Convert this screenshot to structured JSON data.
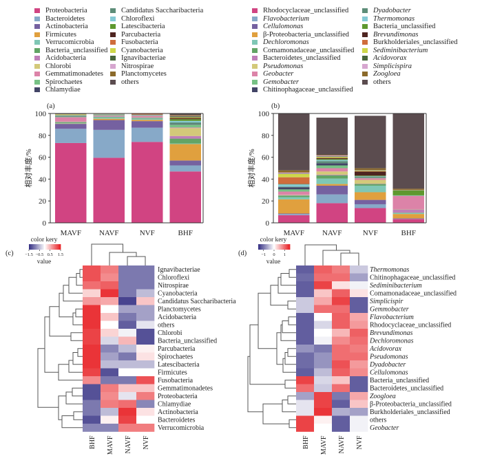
{
  "chart_data": [
    {
      "panel": "(a)",
      "type": "bar",
      "stacked": true,
      "ylabel": "相对丰度/%",
      "ylim": [
        0,
        100
      ],
      "yticks": [
        "0",
        "20",
        "40",
        "60",
        "80",
        "100"
      ],
      "categories": [
        "MAVF",
        "NAVF",
        "NVF",
        "BHF"
      ],
      "series": [
        {
          "name": "Proteobacteria",
          "color": "#d14482",
          "values": [
            73,
            59.5,
            74,
            47
          ]
        },
        {
          "name": "Bacteroidetes",
          "color": "#87a9c8",
          "values": [
            13,
            25.5,
            13,
            5.5
          ]
        },
        {
          "name": "Actinobacteria",
          "color": "#7561a0",
          "values": [
            4.5,
            9,
            6,
            4.5
          ]
        },
        {
          "name": "Firmicutes",
          "color": "#e0a03e",
          "values": [
            0.3,
            1.2,
            1.2,
            15
          ]
        },
        {
          "name": "Verrucomicrobia",
          "color": "#7fc7b5",
          "values": [
            0.5,
            1.2,
            1.2,
            0.6
          ]
        },
        {
          "name": "Bacteria_unclassified",
          "color": "#62a465",
          "values": [
            0.8,
            0.6,
            0.6,
            4.4
          ]
        },
        {
          "name": "Acidobacteria",
          "color": "#bf7fb9",
          "values": [
            0.3,
            0.5,
            0.5,
            2.4
          ]
        },
        {
          "name": "Chlorobi",
          "color": "#d3c97a",
          "values": [
            0.2,
            0.2,
            0.2,
            7.2
          ]
        },
        {
          "name": "Gemmatimonadetes",
          "color": "#dc83a8",
          "values": [
            4,
            0.4,
            1.2,
            0.6
          ]
        },
        {
          "name": "Spirochaetes",
          "color": "#77c185",
          "values": [
            0.3,
            0.4,
            0.3,
            2.6
          ]
        },
        {
          "name": "Chlamydiae",
          "color": "#424466",
          "values": [
            0.1,
            0.1,
            0.1,
            0.4
          ]
        },
        {
          "name": "Candidatus Saccharibacteria",
          "color": "#5d8d78",
          "values": [
            1,
            0.3,
            0.3,
            1.6
          ]
        },
        {
          "name": "Chloroflexi",
          "color": "#85cad5",
          "values": [
            0.3,
            0.2,
            0.2,
            1.4
          ]
        },
        {
          "name": "Latescibacteria",
          "color": "#5e982f",
          "values": [
            0.1,
            0.1,
            0.1,
            1.6
          ]
        },
        {
          "name": "Parcubacteria",
          "color": "#4e2420",
          "values": [
            0.1,
            0.1,
            0.2,
            0.8
          ]
        },
        {
          "name": "Fusobacteria",
          "color": "#cf6d3c",
          "values": [
            0.1,
            0.1,
            0.6,
            0.3
          ]
        },
        {
          "name": "Cyanobacteria",
          "color": "#cfd74a",
          "values": [
            0.5,
            0.1,
            0.1,
            0.5
          ]
        },
        {
          "name": "Ignavibacteriae",
          "color": "#48663c",
          "values": [
            0.1,
            0.1,
            0.1,
            1
          ]
        },
        {
          "name": "Nitrospirae",
          "color": "#d6a6cf",
          "values": [
            0.1,
            0.1,
            0.1,
            0.4
          ]
        },
        {
          "name": "Planctomycetes",
          "color": "#8b6a2a",
          "values": [
            0.2,
            0.1,
            0.1,
            0.8
          ]
        },
        {
          "name": "others",
          "color": "#5b4c4f",
          "values": [
            0.2,
            0.2,
            0.2,
            1.5
          ]
        }
      ]
    },
    {
      "panel": "(b)",
      "type": "bar",
      "stacked": true,
      "ylabel": "相对丰度/%",
      "ylim": [
        0,
        100
      ],
      "yticks": [
        "0",
        "20",
        "40",
        "60",
        "80",
        "100"
      ],
      "categories": [
        "MAVF",
        "NAVF",
        "NVF",
        "BHF"
      ],
      "series": [
        {
          "name": "Rhodocyclaceae_unclassified",
          "color": "#d14482",
          "values": [
            7,
            18,
            13.5,
            3.5
          ]
        },
        {
          "name": "Flavobacterium",
          "color": "#87a9c8",
          "values": [
            1,
            8,
            3.5,
            0.3
          ]
        },
        {
          "name": "Cellulomonas",
          "color": "#7561a0",
          "values": [
            0.5,
            8,
            4,
            0.3
          ]
        },
        {
          "name": "β-Proteobacteria_unclassified",
          "color": "#e0a03e",
          "values": [
            13,
            1.5,
            7,
            4
          ]
        },
        {
          "name": "Dechloromonas",
          "color": "#7fc7b5",
          "values": [
            2,
            5,
            6,
            0.8
          ]
        },
        {
          "name": "Comamonadaceae_unclassified",
          "color": "#62a465",
          "values": [
            1.5,
            3,
            1.5,
            0.4
          ]
        },
        {
          "name": "Bacteroidetes_unclassified",
          "color": "#bf7fb9",
          "values": [
            0.3,
            0.5,
            0.3,
            3
          ]
        },
        {
          "name": "Pseudomonas",
          "color": "#d3c97a",
          "values": [
            0.3,
            3,
            3.5,
            0.3
          ]
        },
        {
          "name": "Geobacter",
          "color": "#dc83a8",
          "values": [
            3,
            3,
            1.5,
            12
          ]
        },
        {
          "name": "Gemobacter",
          "color": "#77c185",
          "values": [
            2,
            2.5,
            0.5,
            0.3
          ]
        },
        {
          "name": "Chitinophagaceae_unclassified",
          "color": "#424466",
          "values": [
            2,
            2,
            0.3,
            0.1
          ]
        },
        {
          "name": "Dyadobacter",
          "color": "#5d8d78",
          "values": [
            0.5,
            2,
            0.8,
            0.1
          ]
        },
        {
          "name": "Thermomonas",
          "color": "#85cad5",
          "values": [
            2,
            1,
            0.3,
            0.1
          ]
        },
        {
          "name": "Bacteria_unclassified",
          "color": "#5e982f",
          "values": [
            0.3,
            0.8,
            0.5,
            4.5
          ]
        },
        {
          "name": "Brevundimonas",
          "color": "#4e2420",
          "values": [
            0.3,
            0.8,
            3.8,
            0.1
          ]
        },
        {
          "name": "Burkholderiales_unclassified",
          "color": "#cf6d3c",
          "values": [
            6,
            0.3,
            0.3,
            0.1
          ]
        },
        {
          "name": "Sediminibacterium",
          "color": "#cfd74a",
          "values": [
            3,
            0.8,
            0.5,
            0.1
          ]
        },
        {
          "name": "Acidovorax",
          "color": "#48663c",
          "values": [
            0.3,
            0.6,
            0.3,
            0.1
          ]
        },
        {
          "name": "Simplicispira",
          "color": "#d6a6cf",
          "values": [
            1,
            0.8,
            0.3,
            0.1
          ]
        },
        {
          "name": "Zoogloea",
          "color": "#8b6a2a",
          "values": [
            2,
            0.6,
            1.5,
            1
          ]
        },
        {
          "name": "others",
          "color": "#5b4c4f",
          "values": [
            52,
            34,
            48,
            68.7
          ]
        }
      ]
    },
    {
      "panel": "(c)",
      "type": "heatmap",
      "color_key_title": "color kery",
      "color_key_label": "value",
      "color_key_ticks": [
        "−1.5",
        "−0.5",
        "0.5",
        "1.5"
      ],
      "color_range": [
        -1.5,
        1.5
      ],
      "columns": [
        "BHF",
        "MAVF",
        "NAVF",
        "NVF"
      ],
      "rows": [
        {
          "name": "Ignavibacteriae",
          "values": [
            1.2,
            0.9,
            -1.0,
            -1.0
          ]
        },
        {
          "name": "Chloroflexi",
          "values": [
            1.2,
            0.8,
            -1.0,
            -1.0
          ]
        },
        {
          "name": "Nitrospirae",
          "values": [
            1.0,
            1.1,
            -1.0,
            -1.0
          ]
        },
        {
          "name": "Cyanobacteria",
          "values": [
            0.3,
            1.4,
            -1.0,
            -0.5
          ]
        },
        {
          "name": "Candidatus Saccharibacteria",
          "values": [
            0.7,
            0.6,
            -1.4,
            0.4
          ]
        },
        {
          "name": "Planctomycetes",
          "values": [
            1.4,
            0.0,
            -0.7,
            -0.7
          ]
        },
        {
          "name": "Acidobacteria",
          "values": [
            1.4,
            0.4,
            -1.0,
            -0.7
          ]
        },
        {
          "name": "others",
          "values": [
            1.4,
            0.0,
            -1.2,
            -0.2
          ]
        },
        {
          "name": "Chlorobi",
          "values": [
            1.3,
            0.3,
            -0.1,
            -1.3
          ]
        },
        {
          "name": "Bacteria_unclassified",
          "values": [
            1.3,
            -0.3,
            0.5,
            -1.3
          ]
        },
        {
          "name": "Parcubacteria",
          "values": [
            1.4,
            -0.9,
            -0.5,
            0.1
          ]
        },
        {
          "name": "Spirochaetes",
          "values": [
            1.4,
            -0.7,
            -1.0,
            0.2
          ]
        },
        {
          "name": "Latescibacteria",
          "values": [
            1.4,
            -0.5,
            -0.5,
            -0.5
          ]
        },
        {
          "name": "Firmicutes",
          "values": [
            1.3,
            -1.3,
            0.0,
            0.0
          ]
        },
        {
          "name": "Fusobacteria",
          "values": [
            0.8,
            -1.0,
            -1.0,
            1.2
          ]
        },
        {
          "name": "Gemmatimonadetes",
          "values": [
            -1.3,
            0.9,
            0.4,
            0.4
          ]
        },
        {
          "name": "Proteobacteria",
          "values": [
            -1.3,
            0.8,
            -0.2,
            0.9
          ]
        },
        {
          "name": "Chlamydiae",
          "values": [
            -1.0,
            0.9,
            1.0,
            -0.9
          ]
        },
        {
          "name": "Actinobacteria",
          "values": [
            -1.0,
            -0.5,
            1.4,
            0.2
          ]
        },
        {
          "name": "Bacteroidetes",
          "values": [
            -1.3,
            0.1,
            1.3,
            0.0
          ]
        },
        {
          "name": "Verrucomicrobia",
          "values": [
            -0.9,
            -0.9,
            0.9,
            0.9
          ]
        }
      ]
    },
    {
      "panel": "(d)",
      "type": "heatmap",
      "color_key_title": "color kery",
      "color_key_label": "value",
      "color_key_ticks": [
        "−1",
        "0",
        "1"
      ],
      "color_range": [
        -1.5,
        1.5
      ],
      "columns": [
        "BHF",
        "MAVF",
        "NAVF",
        "NVF"
      ],
      "rows": [
        {
          "name": "Thermomonas",
          "italic": true,
          "values": [
            -1.2,
            1.1,
            0.9,
            -0.4
          ]
        },
        {
          "name": "Chitinophagaceae_unclassified",
          "italic": false,
          "values": [
            -1.1,
            1.0,
            1.0,
            -0.7
          ]
        },
        {
          "name": "Sediminibacterium",
          "italic": true,
          "values": [
            -1.2,
            1.3,
            0.2,
            -0.1
          ]
        },
        {
          "name": "Comamonadaceae_unclassified",
          "italic": false,
          "values": [
            -1.2,
            0.4,
            1.1,
            0.2
          ]
        },
        {
          "name": "Simplicispir",
          "italic": true,
          "values": [
            -0.4,
            0.6,
            1.3,
            -1.2
          ]
        },
        {
          "name": "Gemmobacter",
          "italic": true,
          "values": [
            -0.4,
            1.0,
            1.0,
            -1.2
          ]
        },
        {
          "name": "Flavobacterium",
          "italic": true,
          "values": [
            -1.2,
            0.0,
            1.1,
            0.6
          ]
        },
        {
          "name": "Rhodocyclaceae_unclassified",
          "italic": false,
          "values": [
            -1.2,
            -0.3,
            1.1,
            0.7
          ]
        },
        {
          "name": "Brevundimonas",
          "italic": true,
          "values": [
            -1.2,
            0.0,
            0.5,
            1.1
          ]
        },
        {
          "name": "Dechloromonas",
          "italic": true,
          "values": [
            -1.2,
            -0.1,
            0.8,
            1.0
          ]
        },
        {
          "name": "Acidovorax",
          "italic": true,
          "values": [
            -0.8,
            -1.0,
            1.0,
            0.9
          ]
        },
        {
          "name": "Pseudomonas",
          "italic": true,
          "values": [
            -1.1,
            -0.8,
            1.0,
            1.0
          ]
        },
        {
          "name": "Dyadobacter",
          "italic": true,
          "values": [
            -1.1,
            -0.8,
            1.2,
            0.7
          ]
        },
        {
          "name": "Cellulomonas",
          "italic": true,
          "values": [
            -1.2,
            -0.5,
            1.1,
            0.8
          ]
        },
        {
          "name": "Bacteria_unclassified",
          "italic": false,
          "values": [
            1.3,
            -0.3,
            0.4,
            -1.2
          ]
        },
        {
          "name": "Bacteroidetes_unclassified",
          "italic": false,
          "values": [
            1.0,
            -0.4,
            1.0,
            -1.2
          ]
        },
        {
          "name": "Zoogloea",
          "italic": true,
          "values": [
            -0.7,
            1.3,
            -1.0,
            0.6
          ]
        },
        {
          "name": "β-Proteobacteria_unclassified",
          "italic": false,
          "values": [
            -0.2,
            1.3,
            -1.2,
            0.4
          ]
        },
        {
          "name": "Burkholderiales_unclassified",
          "italic": false,
          "values": [
            -0.2,
            1.4,
            -0.6,
            -0.7
          ]
        },
        {
          "name": "others",
          "italic": false,
          "values": [
            1.3,
            0.1,
            -1.2,
            -0.1
          ]
        },
        {
          "name": "Geobacter",
          "italic": true,
          "values": [
            1.3,
            0.0,
            -1.2,
            -0.1
          ]
        }
      ]
    }
  ],
  "legend_a": {
    "col1": [
      "Proteobacteria",
      "Bacteroidetes",
      "Actinobacteria",
      "Firmicutes",
      "Verrucomicrobia",
      "Bacteria_unclassified",
      "Acidobacteria",
      "Chlorobi",
      "Gemmatimonadetes",
      "Spirochaetes",
      "Chlamydiae"
    ],
    "col2": [
      "Candidatus Saccharibacteria",
      "Chloroflexi",
      "Latescibacteria",
      "Parcubacteria",
      "Fusobacteria",
      "Cyanobacteria",
      "Ignavibacteriae",
      "Nitrospirae",
      "Planctomycetes",
      "others"
    ]
  },
  "legend_b": {
    "col1": [
      "Rhodocyclaceae_unclassified",
      "Flavobacterium",
      "Cellulomonas",
      "β-Proteobacteria_unclassified",
      "Dechloromonas",
      "Comamonadaceae_unclassified",
      "Bacteroidetes_unclassified",
      "Pseudomonas",
      "Geobacter",
      "Gemobacter",
      "Chitinophagaceae_unclassified"
    ],
    "col1_italic": [
      false,
      true,
      true,
      false,
      true,
      false,
      false,
      true,
      true,
      true,
      false
    ],
    "col2": [
      "Dyadobacter",
      "Thermomonas",
      "Bacteria_unclassified",
      "Brevundimonas",
      "Burkholderiales_unclassified",
      "Sediminibacterium",
      "Acidovorax",
      "Simplicispira",
      "Zoogloea",
      "others"
    ],
    "col2_italic": [
      true,
      true,
      false,
      true,
      false,
      true,
      true,
      true,
      true,
      false
    ]
  },
  "palette": [
    "#d14482",
    "#87a9c8",
    "#7561a0",
    "#e0a03e",
    "#7fc7b5",
    "#62a465",
    "#bf7fb9",
    "#d3c97a",
    "#dc83a8",
    "#77c185",
    "#424466",
    "#5d8d78",
    "#85cad5",
    "#5e982f",
    "#4e2420",
    "#cf6d3c",
    "#cfd74a",
    "#48663c",
    "#d6a6cf",
    "#8b6a2a",
    "#5b4c4f"
  ],
  "heat_colors": {
    "low": "#3b3687",
    "mid": "#ffffff",
    "high": "#e8262a"
  }
}
